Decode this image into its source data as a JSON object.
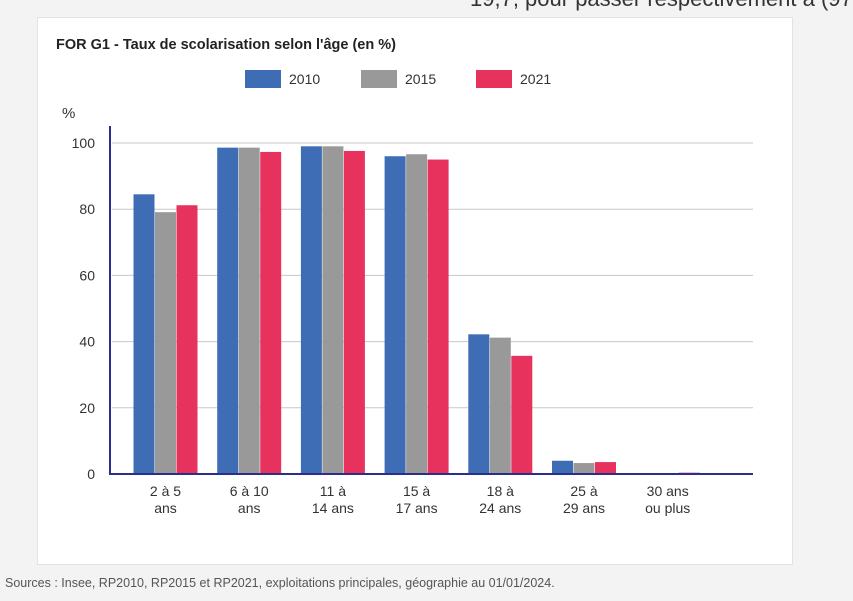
{
  "header_fragment": "19,7, pour passer respectivement à (97",
  "legend": [
    {
      "label": "2010",
      "color": "#3f6db5"
    },
    {
      "label": "2015",
      "color": "#999999"
    },
    {
      "label": "2021",
      "color": "#e8325e"
    }
  ],
  "source_note": "Sources : Insee, RP2010, RP2015 et RP2021, exploitations principales, géographie au 01/01/2024.",
  "chart_data": {
    "type": "bar",
    "title": "FOR G1 - Taux de scolarisation selon l'âge (en %)",
    "ylabel": "%",
    "xlabel": "",
    "ylim": [
      0,
      100
    ],
    "yticks": [
      0,
      20,
      40,
      60,
      80,
      100
    ],
    "grid": true,
    "legend_position": "top",
    "categories": [
      [
        "2 à 5",
        "ans"
      ],
      [
        "6 à 10",
        "ans"
      ],
      [
        "11 à",
        "14 ans"
      ],
      [
        "15 à",
        "17 ans"
      ],
      [
        "18 à",
        "24 ans"
      ],
      [
        "25 à",
        "29 ans"
      ],
      [
        "30 ans",
        "ou plus"
      ]
    ],
    "series": [
      {
        "name": "2010",
        "color": "#3f6db5",
        "values": [
          84.5,
          98.6,
          99.0,
          96.0,
          42.2,
          4.0,
          0.3
        ]
      },
      {
        "name": "2015",
        "color": "#999999",
        "values": [
          79.1,
          98.6,
          99.0,
          96.6,
          41.2,
          3.3,
          0.2
        ]
      },
      {
        "name": "2021",
        "color": "#e8325e",
        "values": [
          81.2,
          97.3,
          97.6,
          95.0,
          35.7,
          3.6,
          0.4
        ]
      }
    ]
  }
}
